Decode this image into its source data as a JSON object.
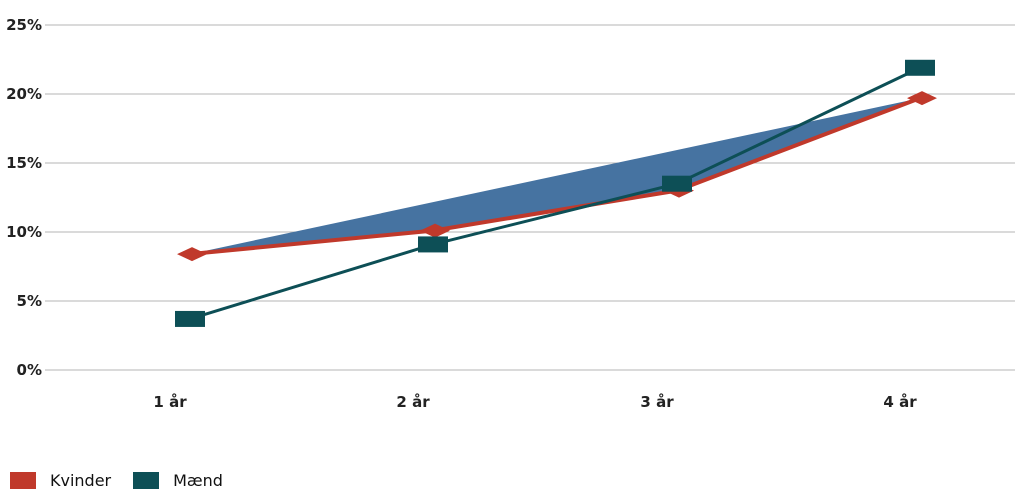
{
  "chart_data": {
    "type": "line",
    "categories": [
      "1 år",
      "2 år",
      "3 år",
      "4 år"
    ],
    "yticks": [
      "0%",
      "5%",
      "10%",
      "15%",
      "20%",
      "25%"
    ],
    "ylim": [
      0,
      25
    ],
    "grid": true,
    "legend_position": "bottom-left",
    "series": [
      {
        "name": "Kvinder",
        "values": [
          8.4,
          10.1,
          13.0,
          19.7
        ],
        "color": "#c0392b",
        "marker": "diamond"
      },
      {
        "name": "Mænd",
        "values": [
          3.7,
          9.1,
          13.5,
          21.9
        ],
        "color": "#0d4f56",
        "marker": "square"
      }
    ],
    "area_color": "#4673a1"
  }
}
